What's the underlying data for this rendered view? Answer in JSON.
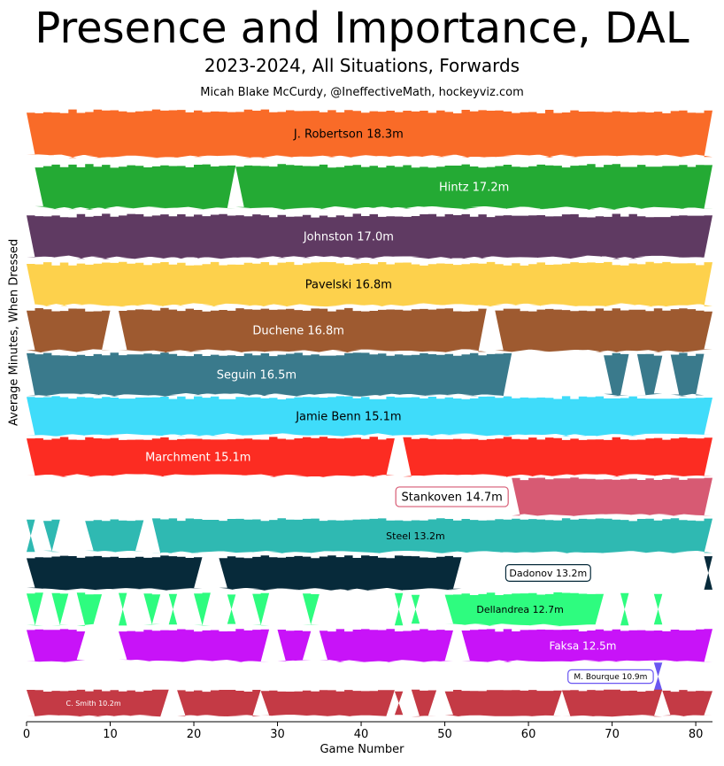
{
  "chart_data": {
    "type": "bar",
    "title": "Presence and Importance, DAL",
    "subtitle": "2023-2024, All Situations, Forwards",
    "credit": "Micah Blake McCurdy, @IneffectiveMath, hockeyviz.com",
    "xlabel": "Game Number",
    "ylabel": "Average Minutes, When Dressed",
    "xlim": [
      0,
      82
    ],
    "xticks": [
      "0",
      "10",
      "20",
      "30",
      "40",
      "50",
      "60",
      "70",
      "80"
    ],
    "series": [
      {
        "name": "J. Robertson",
        "label": "J. Robertson 18.3m",
        "avg": 18.3,
        "color": "#f96b28",
        "text": "dark",
        "games": [
          [
            1,
            82
          ]
        ]
      },
      {
        "name": "Hintz",
        "label": "Hintz 17.2m",
        "avg": 17.2,
        "color": "#24aa34",
        "text": "light",
        "games": [
          [
            2,
            25
          ],
          [
            26,
            82
          ]
        ]
      },
      {
        "name": "Johnston",
        "label": "Johnston 17.0m",
        "avg": 17.0,
        "color": "#5f3a62",
        "text": "light",
        "games": [
          [
            1,
            82
          ]
        ]
      },
      {
        "name": "Pavelski",
        "label": "Pavelski 16.8m",
        "avg": 16.8,
        "color": "#fdd14c",
        "text": "dark",
        "games": [
          [
            1,
            82
          ]
        ]
      },
      {
        "name": "Duchene",
        "label": "Duchene 16.8m",
        "avg": 16.8,
        "color": "#9e5a30",
        "text": "light",
        "games": [
          [
            1,
            10
          ],
          [
            12,
            55
          ],
          [
            57,
            82
          ]
        ]
      },
      {
        "name": "Seguin",
        "label": "Seguin 16.5m",
        "avg": 16.5,
        "color": "#3a7a8c",
        "text": "light",
        "games": [
          [
            1,
            58
          ],
          [
            70,
            72
          ],
          [
            74,
            76
          ],
          [
            78,
            81
          ]
        ]
      },
      {
        "name": "Jamie Benn",
        "label": "Jamie Benn 15.1m",
        "avg": 15.1,
        "color": "#3fdcfa",
        "text": "dark",
        "games": [
          [
            1,
            82
          ]
        ]
      },
      {
        "name": "Marchment",
        "label": "Marchment 15.1m",
        "avg": 15.1,
        "color": "#fc2c22",
        "text": "light",
        "games": [
          [
            1,
            44
          ],
          [
            46,
            82
          ]
        ]
      },
      {
        "name": "Stankoven",
        "label": "Stankoven 14.7m",
        "avg": 14.7,
        "color": "#d75a73",
        "text": "boxed",
        "games": [
          [
            59,
            82
          ]
        ]
      },
      {
        "name": "Steel",
        "label": "Steel 13.2m",
        "avg": 13.2,
        "color": "#2fb9b2",
        "text": "dark",
        "games": [
          [
            1,
            1
          ],
          [
            3,
            4
          ],
          [
            8,
            14
          ],
          [
            16,
            82
          ]
        ]
      },
      {
        "name": "Dadonov",
        "label": "Dadonov 13.2m",
        "avg": 13.2,
        "color": "#072a3a",
        "text": "boxed",
        "games": [
          [
            1,
            21
          ],
          [
            24,
            52
          ],
          [
            82,
            82
          ]
        ]
      },
      {
        "name": "Dellandrea",
        "label": "Dellandrea 12.7m",
        "avg": 12.7,
        "color": "#2efc7f",
        "text": "dark",
        "games": [
          [
            1,
            2
          ],
          [
            4,
            5
          ],
          [
            7,
            9
          ],
          [
            12,
            12
          ],
          [
            15,
            16
          ],
          [
            18,
            18
          ],
          [
            21,
            22
          ],
          [
            25,
            25
          ],
          [
            28,
            29
          ],
          [
            34,
            35
          ],
          [
            45,
            45
          ],
          [
            47,
            47
          ],
          [
            51,
            69
          ],
          [
            72,
            72
          ],
          [
            76,
            76
          ]
        ]
      },
      {
        "name": "Faksa",
        "label": "Faksa 12.5m",
        "avg": 12.5,
        "color": "#c813f8",
        "text": "light",
        "games": [
          [
            1,
            7
          ],
          [
            12,
            29
          ],
          [
            31,
            34
          ],
          [
            36,
            51
          ],
          [
            53,
            82
          ]
        ]
      },
      {
        "name": "M. Bourque",
        "label": "M. Bourque 10.9m",
        "avg": 10.9,
        "color": "#6a57f1",
        "text": "boxed",
        "games": [
          [
            76,
            76
          ]
        ]
      },
      {
        "name": "C. Smith",
        "label": "C. Smith 10.2m",
        "avg": 10.2,
        "color": "#c43a45",
        "text": "light",
        "games": [
          [
            1,
            17
          ],
          [
            19,
            28
          ],
          [
            29,
            44
          ],
          [
            45,
            45
          ],
          [
            47,
            49
          ],
          [
            51,
            64
          ],
          [
            65,
            76
          ],
          [
            77,
            82
          ]
        ]
      }
    ]
  }
}
